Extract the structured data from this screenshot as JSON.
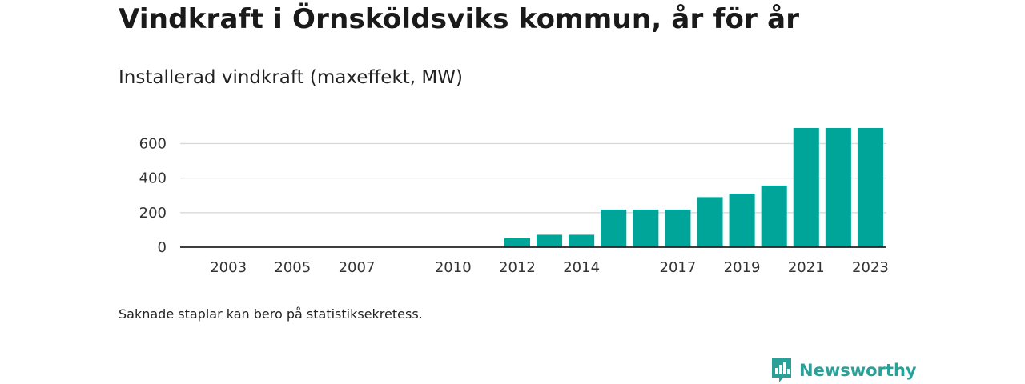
{
  "title": "Vindkraft i Örnsköldsviks kommun, år för år",
  "subtitle": "Installerad vindkraft (maxeffekt, MW)",
  "footnote": "Saknade staplar kan bero på statistiksekretess.",
  "brand": "Newsworthy",
  "colors": {
    "bar": "#00a59a",
    "grid": "#d9d9d9",
    "axis": "#222222",
    "brand": "#2aa198"
  },
  "chart_data": {
    "type": "bar",
    "categories": [
      "2002",
      "2003",
      "2004",
      "2005",
      "2006",
      "2007",
      "2008",
      "2009",
      "2010",
      "2011",
      "2012",
      "2013",
      "2014",
      "2015",
      "2016",
      "2017",
      "2018",
      "2019",
      "2020",
      "2021",
      "2022",
      "2023"
    ],
    "values": [
      0,
      0,
      0,
      0,
      0,
      0,
      0,
      0,
      0,
      0,
      53,
      72,
      72,
      218,
      218,
      218,
      290,
      310,
      357,
      690,
      690,
      690
    ],
    "x_tick_labels": [
      "2003",
      "2005",
      "2007",
      "2010",
      "2012",
      "2014",
      "2017",
      "2019",
      "2021",
      "2023"
    ],
    "y_ticks": [
      0,
      200,
      400,
      600
    ],
    "ylim": [
      0,
      690
    ],
    "grid": true,
    "xlabel": "",
    "ylabel": ""
  }
}
